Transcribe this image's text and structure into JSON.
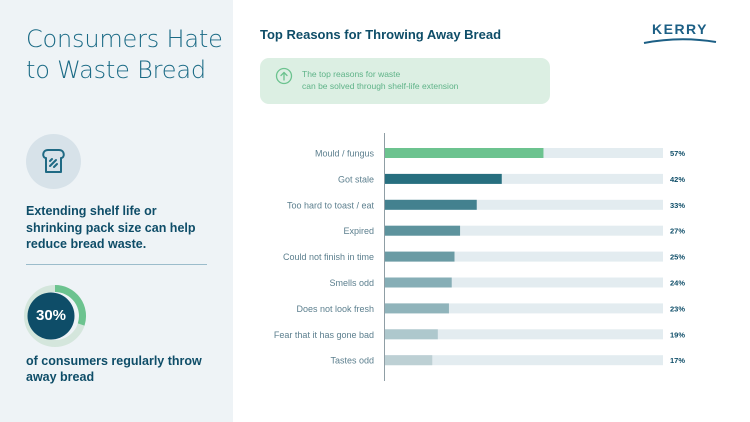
{
  "headline": "Consumers Hate to Waste Bread",
  "callout": "Extending shelf life or shrinking pack size can help reduce bread waste.",
  "stat": {
    "value": "30%",
    "fraction": 0.3,
    "text": "of consumers regularly throw away bread"
  },
  "icons": {
    "bread": "bread-slice-icon",
    "banner": "arrow-up-circle-icon",
    "logo_swoosh": "kerry-swoosh-icon"
  },
  "logo": {
    "text": "KERRY"
  },
  "banner": {
    "line1": "The top reasons for waste",
    "line2": "can be solved through shelf-life extension"
  },
  "colors": {
    "navy": "#0e4d68",
    "headline": "#1a6a85",
    "accent_green": "#6cc38f",
    "track": "#e3ecf0",
    "left_bg": "#eef3f6",
    "banner_bg": "#dcefe3",
    "banner_text": "#5fb388"
  },
  "chart_data": {
    "type": "bar",
    "orientation": "horizontal",
    "title": "Top Reasons for Throwing Away Bread",
    "categories": [
      "Mould / fungus",
      "Got stale",
      "Too hard to toast / eat",
      "Expired",
      "Could not finish in time",
      "Smells odd",
      "Does not look fresh",
      "Fear that it has gone bad",
      "Tastes odd"
    ],
    "values": [
      57,
      42,
      33,
      27,
      25,
      24,
      23,
      19,
      17
    ],
    "labels": [
      "57%",
      "42%",
      "33%",
      "27%",
      "25%",
      "24%",
      "23%",
      "19%",
      "17%"
    ],
    "bar_colors": [
      "#6cc38f",
      "#276f7f",
      "#43818f",
      "#5d939d",
      "#6a9ba4",
      "#86aeb6",
      "#90b4bb",
      "#aec8cd",
      "#bdd0d4"
    ],
    "xlim": [
      0,
      100
    ],
    "xlabel": "",
    "ylabel": "",
    "grid": false
  }
}
